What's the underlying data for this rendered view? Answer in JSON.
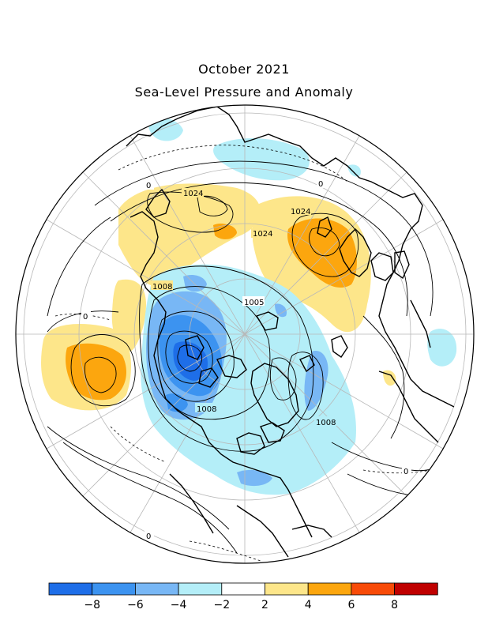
{
  "title": {
    "line1": "October 2021",
    "line2": "Sea-Level Pressure and Anomaly"
  },
  "map": {
    "projection": "north-polar-stereographic",
    "contour_labels": [
      "0",
      "1024",
      "0",
      "1024",
      "1024",
      "1008",
      "1005",
      "0",
      "1008",
      "1008",
      "0",
      "0"
    ]
  },
  "legend": {
    "colors": [
      "#1e6ee8",
      "#3c93f0",
      "#78b7f5",
      "#b4eef8",
      "#ffffff",
      "#fde68a",
      "#fca60e",
      "#f84b08",
      "#c00000"
    ],
    "tick_labels": [
      "−8",
      "−6",
      "−4",
      "−2",
      "2",
      "4",
      "6",
      "8"
    ]
  },
  "colors": {
    "strong_negative": "#1e6ee8",
    "negative": "#3c93f0",
    "weak_negative": "#78b7f5",
    "slight_negative": "#b4eef8",
    "slight_positive": "#fde68a",
    "positive": "#fca60e",
    "strong_positive": "#f84b08",
    "extreme_positive": "#c00000"
  }
}
